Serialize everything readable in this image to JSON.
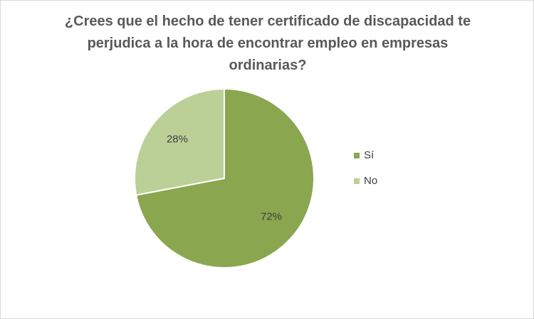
{
  "chart_data": {
    "type": "pie",
    "title": "¿Crees que el hecho de tener certificado de discapacidad te perjudica a la hora de encontrar empleo en empresas ordinarias?",
    "categories": [
      "Sí",
      "No"
    ],
    "values": [
      72,
      28
    ],
    "value_labels": [
      "72%",
      "28%"
    ],
    "colors": [
      "#8aa64f",
      "#bbd097"
    ],
    "legend": "right"
  }
}
